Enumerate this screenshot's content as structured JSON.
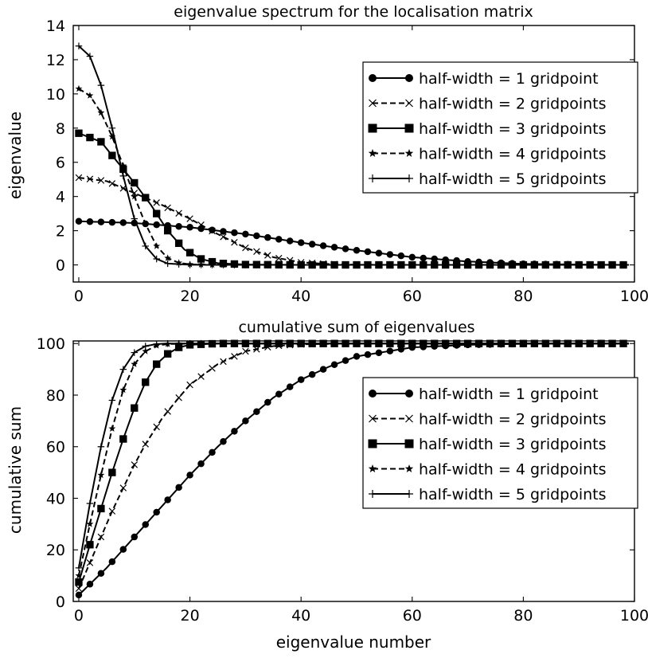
{
  "chart_data": [
    {
      "type": "line",
      "title": "eigenvalue spectrum for the localisation matrix",
      "xlabel": "",
      "ylabel": "eigenvalue",
      "xlim": [
        -1,
        100
      ],
      "ylim": [
        -1,
        14
      ],
      "xticks": [
        "0",
        "20",
        "40",
        "60",
        "80",
        "100"
      ],
      "yticks": [
        "0",
        "2",
        "4",
        "6",
        "8",
        "10",
        "12",
        "14"
      ],
      "grid": false,
      "legend_position": "right",
      "series": [
        {
          "name": "half-width = 1 gridpoint",
          "marker": "circle",
          "line": "solid",
          "x": [
            0,
            10,
            20,
            30,
            40,
            50,
            60,
            70,
            80,
            90,
            99
          ],
          "values": [
            2.55,
            2.45,
            2.2,
            1.8,
            1.3,
            0.85,
            0.45,
            0.2,
            0.06,
            0.02,
            0.0
          ]
        },
        {
          "name": "half-width = 2 gridpoints",
          "marker": "x",
          "line": "dashed",
          "x": [
            0,
            5,
            10,
            15,
            20,
            25,
            30,
            35,
            40,
            45,
            50,
            60,
            70,
            80,
            99
          ],
          "values": [
            5.1,
            4.9,
            4.2,
            3.5,
            2.7,
            1.8,
            1.0,
            0.45,
            0.15,
            0.05,
            0.01,
            0.0,
            0.0,
            0.0,
            0.0
          ]
        },
        {
          "name": "half-width = 3 gridpoints",
          "marker": "square",
          "line": "solid",
          "x": [
            0,
            4,
            7,
            10,
            13,
            16,
            19,
            22,
            25,
            30,
            40,
            60,
            80,
            99
          ],
          "values": [
            7.7,
            7.2,
            6.0,
            4.8,
            3.5,
            2.0,
            0.9,
            0.35,
            0.1,
            0.02,
            0.0,
            0.0,
            0.0,
            0.0
          ]
        },
        {
          "name": "half-width = 4 gridpoints",
          "marker": "star",
          "line": "dashed",
          "x": [
            0,
            2,
            4,
            6,
            8,
            10,
            12,
            14,
            16,
            18,
            20,
            25,
            30,
            40,
            99
          ],
          "values": [
            10.3,
            9.9,
            8.9,
            7.5,
            5.8,
            4.0,
            2.4,
            1.1,
            0.4,
            0.12,
            0.03,
            0.0,
            0.0,
            0.0,
            0.0
          ]
        },
        {
          "name": "half-width = 5 gridpoints",
          "marker": "plus",
          "line": "solid",
          "x": [
            0,
            2,
            4,
            6,
            8,
            10,
            12,
            14,
            16,
            20,
            25,
            30,
            40,
            99
          ],
          "values": [
            12.8,
            12.2,
            10.5,
            8.0,
            5.2,
            2.7,
            1.1,
            0.35,
            0.08,
            0.01,
            0.0,
            0.0,
            0.0,
            0.0
          ]
        }
      ]
    },
    {
      "type": "line",
      "title": "cumulative sum of eigenvalues",
      "xlabel": "eigenvalue number",
      "ylabel": "cumulative sum",
      "xlim": [
        -1,
        100
      ],
      "ylim": [
        0,
        101
      ],
      "xticks": [
        "0",
        "20",
        "40",
        "60",
        "80",
        "100"
      ],
      "yticks": [
        "0",
        "20",
        "40",
        "60",
        "80",
        "100"
      ],
      "grid": false,
      "legend_position": "right",
      "series": [
        {
          "name": "half-width = 1 gridpoint",
          "marker": "circle",
          "line": "solid",
          "x": [
            0,
            5,
            10,
            15,
            20,
            25,
            30,
            35,
            40,
            45,
            50,
            60,
            70,
            80,
            90,
            99
          ],
          "values": [
            2.5,
            13,
            25,
            37,
            49,
            60,
            70,
            79,
            86,
            91,
            95,
            98.5,
            99.5,
            99.9,
            100,
            100
          ]
        },
        {
          "name": "half-width = 2 gridpoints",
          "marker": "x",
          "line": "dashed",
          "x": [
            0,
            2,
            4,
            6,
            8,
            10,
            12,
            15,
            18,
            20,
            25,
            30,
            35,
            40,
            50,
            99
          ],
          "values": [
            5,
            15,
            25,
            35,
            44,
            53,
            61,
            71,
            79,
            84,
            92,
            97,
            99,
            99.7,
            100,
            100
          ]
        },
        {
          "name": "half-width = 3 gridpoints",
          "marker": "square",
          "line": "solid",
          "x": [
            0,
            2,
            4,
            6,
            8,
            10,
            12,
            14,
            16,
            18,
            20,
            25,
            30,
            99
          ],
          "values": [
            7.5,
            22,
            36,
            50,
            63,
            75,
            85,
            92,
            96,
            98.5,
            99.5,
            100,
            100,
            100
          ]
        },
        {
          "name": "half-width = 4 gridpoints",
          "marker": "star",
          "line": "dashed",
          "x": [
            0,
            2,
            4,
            6,
            8,
            10,
            12,
            14,
            16,
            20,
            99
          ],
          "values": [
            10,
            30,
            49,
            67,
            82,
            92,
            97,
            99.2,
            99.8,
            100,
            100
          ]
        },
        {
          "name": "half-width = 5 gridpoints",
          "marker": "plus",
          "line": "solid",
          "x": [
            0,
            2,
            4,
            6,
            8,
            10,
            12,
            14,
            16,
            20,
            99
          ],
          "values": [
            13,
            38,
            60,
            78,
            90,
            96.5,
            99,
            99.8,
            100,
            100,
            100
          ]
        }
      ]
    }
  ]
}
